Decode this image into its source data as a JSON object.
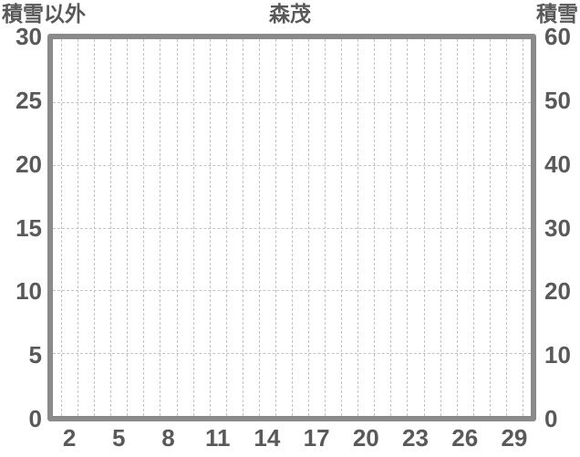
{
  "colors": {
    "background": "#ffffff",
    "frame": "#8a8a8a",
    "gridline": "#c3c3c3",
    "text": "#595959"
  },
  "chart_data": {
    "type": "line",
    "title": "森茂",
    "left_axis": {
      "label": "積雪以外",
      "ticks": [
        30,
        25,
        20,
        15,
        10,
        5,
        0
      ],
      "range": [
        0,
        30
      ]
    },
    "right_axis": {
      "label": "積雪",
      "ticks": [
        60,
        50,
        40,
        30,
        20,
        10,
        0
      ],
      "range": [
        0,
        60
      ]
    },
    "x_axis": {
      "ticks": [
        2,
        5,
        8,
        11,
        14,
        17,
        20,
        23,
        26,
        29
      ],
      "range": [
        1,
        30
      ]
    },
    "series": [],
    "grid": {
      "horizontal": "dashed at every labeled y tick",
      "vertical": "dashed at every half-integer x"
    },
    "legend": "none"
  }
}
